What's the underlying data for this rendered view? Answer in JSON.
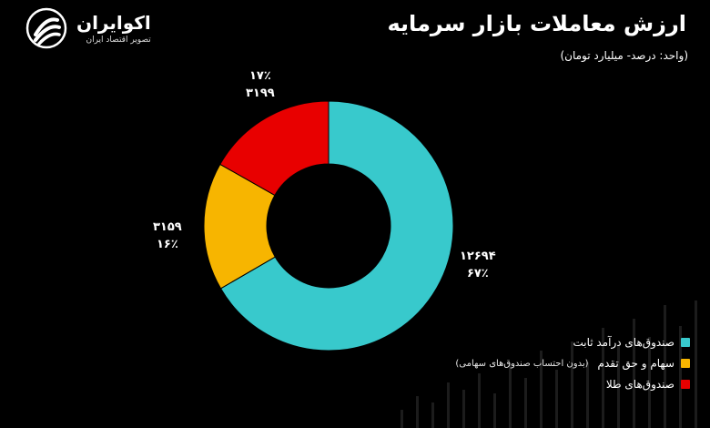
{
  "brand": {
    "name": "اکوایران",
    "tagline": "تصویر اقتصاد ایران",
    "icon": "swirl-logo-icon"
  },
  "colors": {
    "background": "#000000",
    "fixed_income": "#38c9cc",
    "stocks": "#f7b500",
    "gold": "#e80000"
  },
  "chart_data": {
    "type": "pie",
    "subtype": "donut",
    "title": "ارزش معاملات بازار سرمایه",
    "subtitle": "(واحد: درصد- میلیارد تومان)",
    "unit": "میلیارد تومان",
    "slices": [
      {
        "name": "صندوق‌های درآمد ثابت",
        "value": 12694,
        "percent": 67,
        "value_label": "۱۲۶۹۴",
        "percent_label": "۶۷٪",
        "color": "#38c9cc"
      },
      {
        "name": "سهام و حق تقدم",
        "note": "(بدون احتساب صندوق‌های سهامی)",
        "value": 3159,
        "percent": 16,
        "value_label": "۳۱۵۹",
        "percent_label": "۱۶٪",
        "color": "#f7b500"
      },
      {
        "name": "صندوق‌های طلا",
        "value": 3199,
        "percent": 17,
        "value_label": "۳۱۹۹",
        "percent_label": "۱۷٪",
        "color": "#e80000"
      }
    ],
    "legend_position": "bottom-right"
  }
}
